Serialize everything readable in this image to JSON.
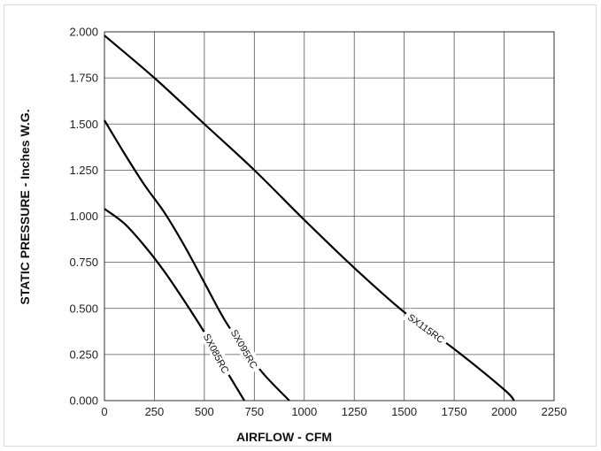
{
  "chart_data": {
    "type": "line",
    "xlabel": "AIRFLOW - CFM",
    "ylabel": "STATIC PRESSURE - Inches W.G.",
    "xlim": [
      0,
      2250
    ],
    "ylim": [
      0,
      2.0
    ],
    "x_ticks": [
      "0",
      "250",
      "500",
      "750",
      "1000",
      "1250",
      "1500",
      "1750",
      "2000",
      "2250"
    ],
    "y_ticks": [
      "0.000",
      "0.250",
      "0.500",
      "0.750",
      "1.000",
      "1.250",
      "1.500",
      "1.750",
      "2.000"
    ],
    "grid": true,
    "series": [
      {
        "name": "SX085RC",
        "x": [
          0,
          100,
          200,
          300,
          400,
          500,
          600,
          700
        ],
        "y": [
          1.04,
          0.96,
          0.84,
          0.7,
          0.54,
          0.37,
          0.18,
          0.0
        ]
      },
      {
        "name": "SX095RC",
        "x": [
          0,
          100,
          200,
          300,
          400,
          500,
          600,
          700,
          800,
          925
        ],
        "y": [
          1.52,
          1.34,
          1.17,
          1.02,
          0.84,
          0.64,
          0.44,
          0.28,
          0.14,
          0.0
        ]
      },
      {
        "name": "SX115RC",
        "x": [
          0,
          250,
          500,
          750,
          1000,
          1250,
          1500,
          1750,
          2000,
          2050
        ],
        "y": [
          1.98,
          1.75,
          1.5,
          1.25,
          0.98,
          0.72,
          0.48,
          0.28,
          0.06,
          0.0
        ]
      }
    ]
  }
}
